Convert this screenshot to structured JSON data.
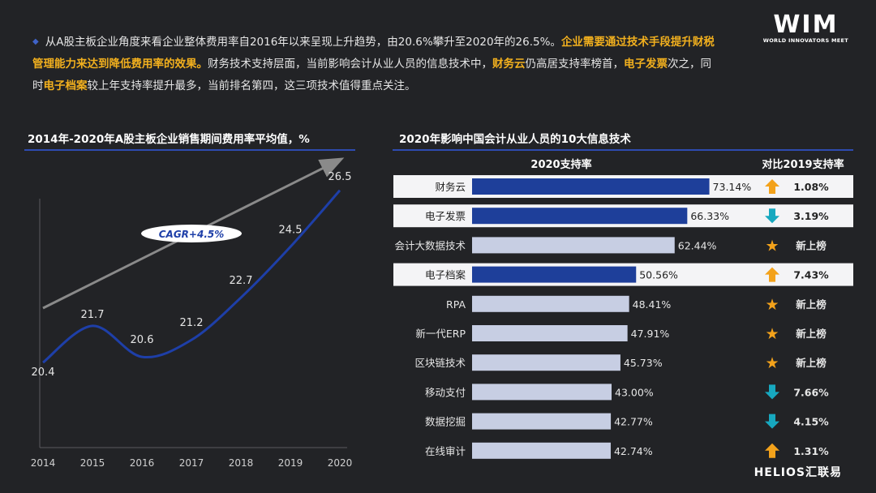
{
  "intro": {
    "p1": "从A股主板企业角度来看企业整体费用率自2016年以来呈现上升趋势，由20.6%攀升至2020年的26.5%。",
    "h1": "企业需要通过技术手段提升财税管理能力来达到降低费用率的效果。",
    "p2": "财务技术支持层面，当前影响会计从业人员的信息技术中，",
    "h2": "财务云",
    "p3": "仍高居支持率榜首，",
    "h3": "电子发票",
    "p4": "次之，同时",
    "h4": "电子档案",
    "p5": "较上年支持率提升最多，当前排名第四，这三项技术值得重点关注。"
  },
  "logo": {
    "big": "WIM",
    "small": "WORLD INNOVATORS MEET"
  },
  "footer": {
    "brand": "HELIOS汇联易"
  },
  "colors": {
    "bg": "#222326",
    "accent_blue": "#1e3f9a",
    "bar_gray": "#c7cee3",
    "highlight": "#f2b01e",
    "up": "#f3a21b",
    "down": "#17a8bf",
    "star": "#f3a21b"
  },
  "chart_data": [
    {
      "type": "line",
      "title": "2014年-2020年A股主板企业销售期间费用率平均值，%",
      "x": [
        "2014",
        "2015",
        "2016",
        "2017",
        "2018",
        "2019",
        "2020"
      ],
      "values": [
        20.4,
        21.7,
        20.6,
        21.2,
        22.7,
        24.5,
        26.5
      ],
      "value_labels": [
        "20.4",
        "21.7",
        "20.6",
        "21.2",
        "22.7",
        "24.5",
        "26.5"
      ],
      "annotation": "CAGR+4.5%",
      "ylim": [
        17.5,
        27.5
      ]
    },
    {
      "type": "bar",
      "title": "2020年影响中国会计从业人员的10大信息技术",
      "col_header": "2020支持率",
      "compare_header": "对比2019支持率",
      "rows": [
        {
          "name": "财务云",
          "value": 73.14,
          "label": "73.14%",
          "compare_icon": "arrow-up",
          "compare": "1.08%",
          "highlight": true
        },
        {
          "name": "电子发票",
          "value": 66.33,
          "label": "66.33%",
          "compare_icon": "arrow-down",
          "compare": "3.19%",
          "highlight": true
        },
        {
          "name": "会计大数据技术",
          "value": 62.44,
          "label": "62.44%",
          "compare_icon": "star",
          "compare": "新上榜",
          "highlight": false
        },
        {
          "name": "电子档案",
          "value": 50.56,
          "label": "50.56%",
          "compare_icon": "arrow-up",
          "compare": "7.43%",
          "highlight": true
        },
        {
          "name": "RPA",
          "value": 48.41,
          "label": "48.41%",
          "compare_icon": "star",
          "compare": "新上榜",
          "highlight": false
        },
        {
          "name": "新一代ERP",
          "value": 47.91,
          "label": "47.91%",
          "compare_icon": "star",
          "compare": "新上榜",
          "highlight": false
        },
        {
          "name": "区块链技术",
          "value": 45.73,
          "label": "45.73%",
          "compare_icon": "star",
          "compare": "新上榜",
          "highlight": false
        },
        {
          "name": "移动支付",
          "value": 43.0,
          "label": "43.00%",
          "compare_icon": "arrow-down",
          "compare": "7.66%",
          "highlight": false
        },
        {
          "name": "数据挖掘",
          "value": 42.77,
          "label": "42.77%",
          "compare_icon": "arrow-down",
          "compare": "4.15%",
          "highlight": false
        },
        {
          "name": "在线审计",
          "value": 42.74,
          "label": "42.74%",
          "compare_icon": "arrow-up",
          "compare": "1.31%",
          "highlight": false
        }
      ]
    }
  ]
}
